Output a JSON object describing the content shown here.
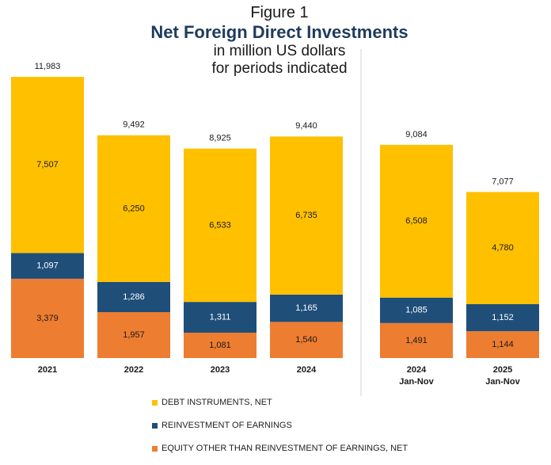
{
  "figure_label": "Figure 1",
  "colors": {
    "debt": "#FFC000",
    "reinvest": "#1F4E79",
    "equity": "#ED7D31",
    "title": "#1F3B5C"
  },
  "chart_data": {
    "type": "bar",
    "stacked": true,
    "title": "Net Foreign Direct Investments",
    "subtitle_lines": [
      "in million US dollars",
      "for periods indicated"
    ],
    "categories": [
      "2021",
      "2022",
      "2023",
      "2024",
      "2024|Jan-Nov",
      "2025|Jan-Nov"
    ],
    "series": [
      {
        "name": "EQUITY OTHER THAN REINVESTMENT OF EARNINGS, NET",
        "key": "equity",
        "values": [
          3379,
          1957,
          1081,
          1540,
          1491,
          1144
        ],
        "labels": [
          "3,379",
          "1,957",
          "1,081",
          "1,540",
          "1,491",
          "1,144"
        ]
      },
      {
        "name": "REINVESTMENT OF EARNINGS",
        "key": "reinvest",
        "values": [
          1097,
          1286,
          1311,
          1165,
          1085,
          1152
        ],
        "labels": [
          "1,097",
          "1,286",
          "1,311",
          "1,165",
          "1,085",
          "1,152"
        ]
      },
      {
        "name": "DEBT INSTRUMENTS, NET",
        "key": "debt",
        "values": [
          7507,
          6250,
          6533,
          6735,
          6508,
          4780
        ],
        "labels": [
          "7,507",
          "6,250",
          "6,533",
          "6,735",
          "6,508",
          "4,780"
        ]
      }
    ],
    "totals": [
      11983,
      9492,
      8925,
      9440,
      9084,
      7077
    ],
    "total_labels": [
      "11,983",
      "9,492",
      "8,925",
      "9,440",
      "9,084",
      "7,077"
    ],
    "ylim": [
      0,
      12000
    ],
    "grid": false,
    "divider_after_index": 3,
    "legend_order": [
      "debt",
      "reinvest",
      "equity"
    ],
    "legend_placement": "bottom"
  }
}
